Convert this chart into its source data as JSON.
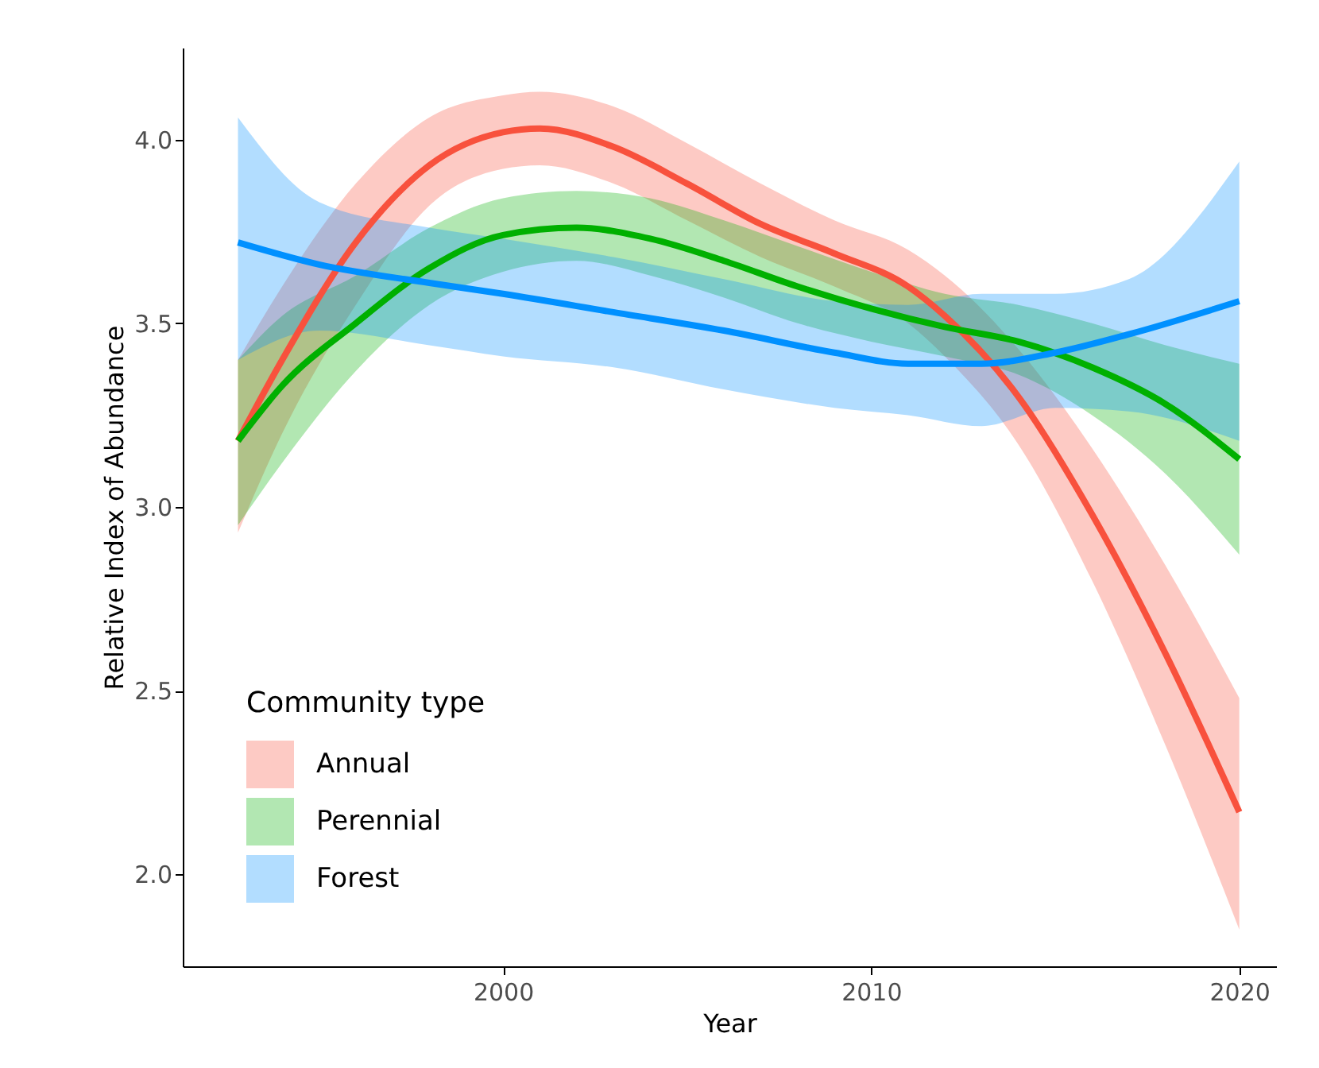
{
  "chart_data": {
    "type": "line",
    "xlabel": "Year",
    "ylabel": "Relative Index of Abundance",
    "legend_title": "Community type",
    "legend": "bottom left",
    "xlim": [
      1991.3,
      2021.0
    ],
    "xticks": [
      2000,
      2010,
      2020
    ],
    "ylim": [
      1.75,
      4.25
    ],
    "yticks": [
      {
        "value": 2,
        "label": "2.0"
      },
      2.5,
      {
        "value": 3,
        "label": "3.0"
      },
      3.5,
      {
        "value": 4,
        "label": "4.0"
      }
    ],
    "grid": false,
    "marker": "none",
    "line_style": "solid",
    "series": [
      {
        "name": "Annual",
        "color": "#f8513d",
        "x": [
          1992.8,
          1994,
          1996,
          1998,
          2000,
          2001,
          2003,
          2005,
          2007,
          2009,
          2011,
          2012,
          2014,
          2016,
          2018,
          2020
        ],
        "values": [
          3.18,
          3.4,
          3.72,
          3.93,
          4.02,
          4.03,
          3.98,
          3.88,
          3.77,
          3.69,
          3.6,
          3.52,
          3.3,
          2.98,
          2.6,
          2.17
        ],
        "lower": [
          2.93,
          3.2,
          3.55,
          3.82,
          3.92,
          3.93,
          3.88,
          3.78,
          3.68,
          3.6,
          3.5,
          3.41,
          3.17,
          2.8,
          2.35,
          1.85
        ],
        "upper": [
          3.4,
          3.6,
          3.88,
          4.06,
          4.12,
          4.13,
          4.09,
          3.99,
          3.88,
          3.78,
          3.7,
          3.63,
          3.43,
          3.16,
          2.84,
          2.48
        ]
      },
      {
        "name": "Perennial",
        "color": "#00b000",
        "x": [
          1992.8,
          1994,
          1996,
          1998,
          2000,
          2002,
          2004,
          2006,
          2008,
          2010,
          2012,
          2014,
          2016,
          2018,
          2020
        ],
        "values": [
          3.18,
          3.33,
          3.5,
          3.65,
          3.74,
          3.76,
          3.73,
          3.67,
          3.6,
          3.54,
          3.49,
          3.45,
          3.38,
          3.28,
          3.13
        ],
        "lower": [
          2.95,
          3.12,
          3.37,
          3.55,
          3.64,
          3.67,
          3.63,
          3.57,
          3.5,
          3.45,
          3.41,
          3.36,
          3.25,
          3.09,
          2.87
        ],
        "upper": [
          3.4,
          3.52,
          3.63,
          3.76,
          3.84,
          3.86,
          3.84,
          3.78,
          3.71,
          3.64,
          3.58,
          3.55,
          3.5,
          3.44,
          3.39
        ]
      },
      {
        "name": "Forest",
        "color": "#0090ff",
        "x": [
          1992.8,
          1995,
          1998,
          2000,
          2003,
          2006,
          2009,
          2011,
          2013,
          2015,
          2017,
          2020
        ],
        "values": [
          3.72,
          3.66,
          3.61,
          3.58,
          3.53,
          3.48,
          3.42,
          3.39,
          3.39,
          3.42,
          3.47,
          3.56
        ],
        "lower": [
          3.4,
          3.48,
          3.44,
          3.41,
          3.38,
          3.32,
          3.27,
          3.25,
          3.22,
          3.27,
          3.26,
          3.18
        ],
        "upper": [
          4.06,
          3.83,
          3.76,
          3.73,
          3.68,
          3.62,
          3.56,
          3.55,
          3.58,
          3.58,
          3.62,
          3.94
        ]
      }
    ]
  }
}
